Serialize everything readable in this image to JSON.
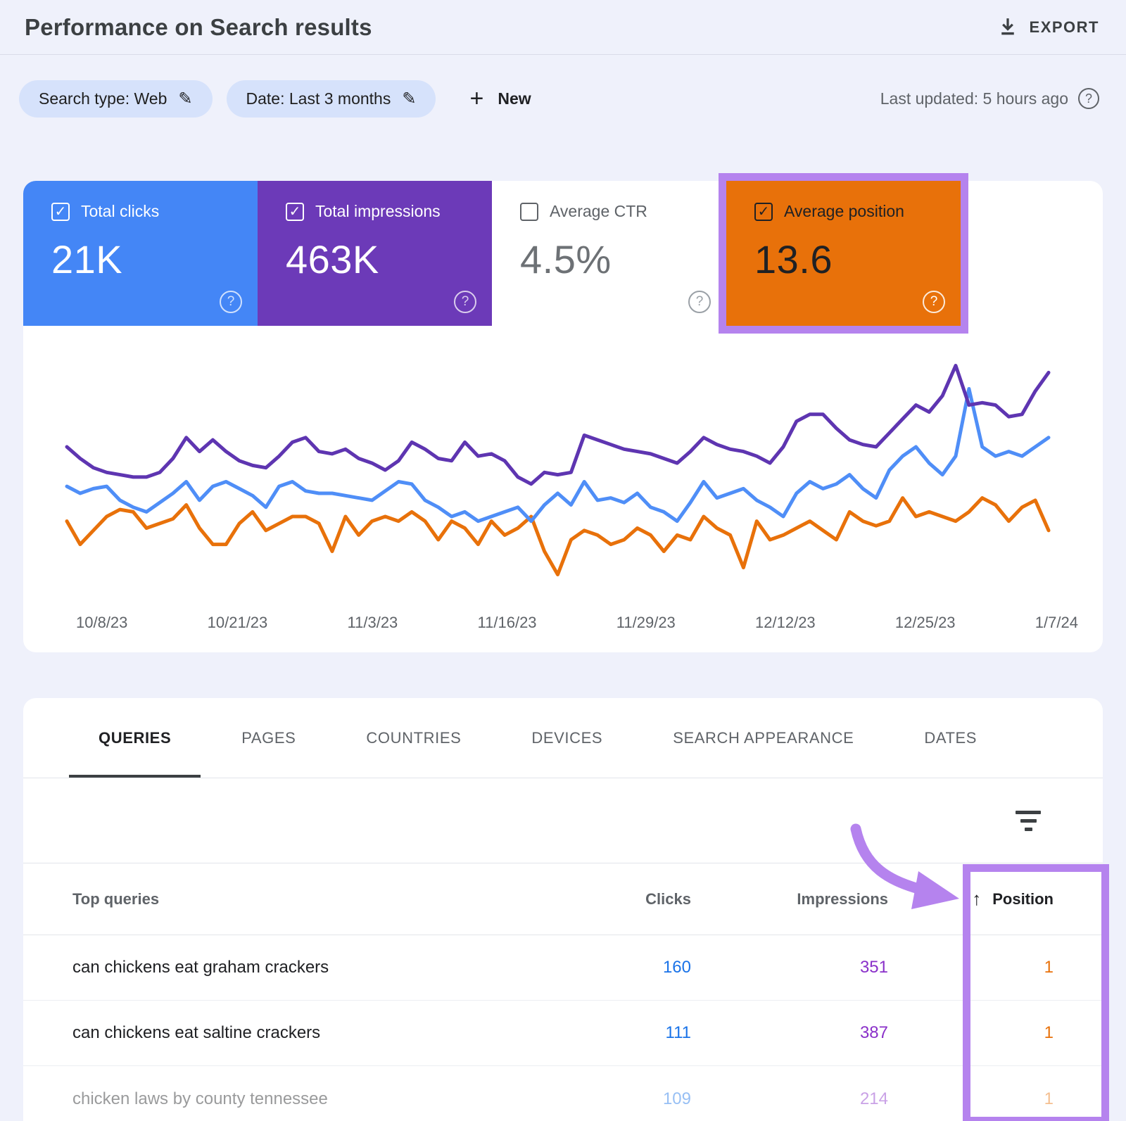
{
  "header": {
    "title": "Performance on Search results",
    "export_label": "EXPORT"
  },
  "filters": {
    "search_type_chip": "Search type: Web",
    "date_chip": "Date: Last 3 months",
    "new_label": "New",
    "last_updated": "Last updated: 5 hours ago"
  },
  "icons": {
    "help": "?",
    "plus": "+",
    "pencil": "✎",
    "check": "✓",
    "sort_up": "↑"
  },
  "metrics": [
    {
      "label": "Total clicks",
      "value": "21K",
      "checked": true,
      "bg": "#4486f6",
      "fg": "#ffffff",
      "box": "#ffffff",
      "help": "rgba(255,255,255,0.75)",
      "highlighted": false
    },
    {
      "label": "Total impressions",
      "value": "463K",
      "checked": true,
      "bg": "#6c3ab8",
      "fg": "#ffffff",
      "box": "#ffffff",
      "help": "rgba(255,255,255,0.75)",
      "highlighted": false
    },
    {
      "label": "Average CTR",
      "value": "4.5%",
      "checked": false,
      "bg": "#ffffff",
      "fg": "#6d7175",
      "box": "#5f6368",
      "help": "#9aa0a6",
      "label_color": "#5f6368",
      "highlighted": false
    },
    {
      "label": "Average position",
      "value": "13.6",
      "checked": true,
      "bg": "#e8710a",
      "fg": "#202124",
      "box": "#202124",
      "help": "rgba(255,255,255,0.85)",
      "help_fg": "#ffffff",
      "highlighted": true
    }
  ],
  "chart_data": {
    "type": "line",
    "title": "Search performance over last 3 months (daily)",
    "x_tick_labels": [
      "10/8/23",
      "10/21/23",
      "11/3/23",
      "11/16/23",
      "11/29/23",
      "12/12/23",
      "12/25/23",
      "1/7/24"
    ],
    "y_axis": "hidden",
    "y_scale_note": "values are relative 0-100 of plot height (no y-axis shown); totals: clicks 21K, impressions 463K, avg CTR 4.5%, avg position 13.6",
    "grid": false,
    "legend": "metric tiles act as legend",
    "series": [
      {
        "name": "Total impressions",
        "color": "#5e35b1",
        "values": [
          60,
          55,
          51,
          49,
          48,
          47,
          47,
          49,
          55,
          64,
          58,
          63,
          58,
          54,
          52,
          51,
          56,
          62,
          64,
          58,
          57,
          59,
          55,
          53,
          50,
          54,
          62,
          59,
          55,
          54,
          62,
          56,
          57,
          54,
          47,
          44,
          49,
          48,
          49,
          65,
          63,
          61,
          59,
          58,
          57,
          55,
          53,
          58,
          64,
          61,
          59,
          58,
          56,
          53,
          60,
          71,
          74,
          74,
          68,
          63,
          61,
          60,
          66,
          72,
          78,
          75,
          82,
          95,
          78,
          79,
          78,
          73,
          74,
          84,
          92
        ]
      },
      {
        "name": "Total clicks",
        "color": "#4f8ef7",
        "values": [
          43,
          40,
          42,
          43,
          37,
          34,
          32,
          36,
          40,
          45,
          37,
          43,
          45,
          42,
          39,
          34,
          43,
          45,
          41,
          40,
          40,
          39,
          38,
          37,
          41,
          45,
          44,
          37,
          34,
          30,
          32,
          28,
          30,
          32,
          34,
          28,
          35,
          40,
          35,
          45,
          37,
          38,
          36,
          40,
          34,
          32,
          28,
          36,
          45,
          38,
          40,
          42,
          37,
          34,
          30,
          40,
          45,
          42,
          44,
          48,
          42,
          38,
          50,
          56,
          60,
          53,
          48,
          56,
          85,
          60,
          56,
          58,
          56,
          60,
          64
        ]
      },
      {
        "name": "Average position",
        "color": "#e8710a",
        "values": [
          28,
          18,
          24,
          30,
          33,
          32,
          25,
          27,
          29,
          35,
          25,
          18,
          18,
          27,
          32,
          24,
          27,
          30,
          30,
          27,
          15,
          30,
          22,
          28,
          30,
          28,
          32,
          28,
          20,
          28,
          25,
          18,
          28,
          22,
          25,
          30,
          15,
          5,
          20,
          24,
          22,
          18,
          20,
          25,
          22,
          15,
          22,
          20,
          30,
          25,
          22,
          8,
          28,
          20,
          22,
          25,
          28,
          24,
          20,
          32,
          28,
          26,
          28,
          38,
          30,
          32,
          30,
          28,
          32,
          38,
          35,
          28,
          34,
          37,
          24
        ]
      }
    ]
  },
  "tabs": {
    "active": 0,
    "items": [
      "QUERIES",
      "PAGES",
      "COUNTRIES",
      "DEVICES",
      "SEARCH APPEARANCE",
      "DATES"
    ]
  },
  "table": {
    "columns": [
      "Top queries",
      "Clicks",
      "Impressions",
      "Position"
    ],
    "rows": [
      {
        "query": "can chickens eat graham crackers",
        "clicks": "160",
        "impressions": "351",
        "position": "1",
        "faded": false
      },
      {
        "query": "can chickens eat saltine crackers",
        "clicks": "111",
        "impressions": "387",
        "position": "1",
        "faded": false
      },
      {
        "query": "chicken laws by county tennessee",
        "clicks": "109",
        "impressions": "214",
        "position": "1",
        "faded": true
      }
    ]
  },
  "colors": {
    "page_bg": "#eff1fb",
    "card_bg": "#ffffff",
    "divider": "#e3e5ea",
    "annotation_purple": "#b583ee",
    "clicks_num": "#1a73e8",
    "impressions_num": "#8a30c9",
    "position_num": "#e8710a"
  }
}
